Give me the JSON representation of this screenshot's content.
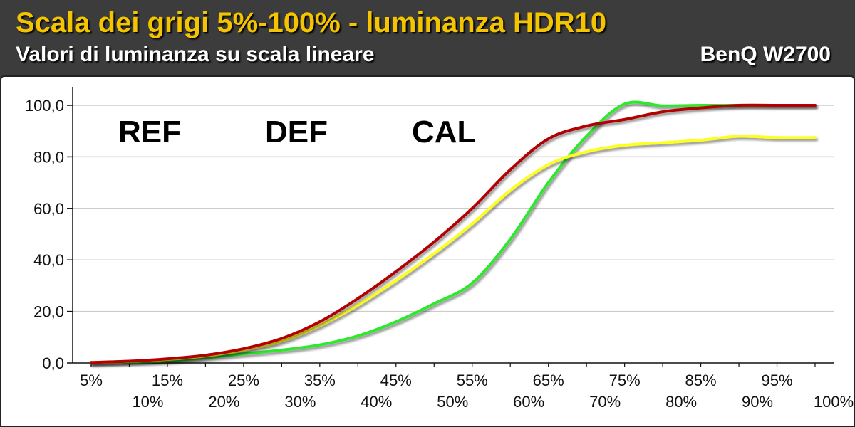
{
  "header": {
    "title": "Scala dei grigi 5%-100% - luminanza HDR10",
    "subtitle": "Valori di luminanza su scala lineare",
    "brand": "BenQ W2700"
  },
  "colors": {
    "REF": "#2ee82e",
    "DEF": "#ffff1a",
    "CAL": "#b30000",
    "grid": "#cccccc"
  },
  "chart_data": {
    "type": "line",
    "title": "Scala dei grigi 5%-100% - luminanza HDR10",
    "subtitle": "Valori di luminanza su scala lineare",
    "x": [
      "5%",
      "10%",
      "15%",
      "20%",
      "25%",
      "30%",
      "35%",
      "40%",
      "45%",
      "50%",
      "55%",
      "60%",
      "65%",
      "70%",
      "75%",
      "80%",
      "85%",
      "90%",
      "95%",
      "100%"
    ],
    "y_ticks": [
      "0,0",
      "20,0",
      "40,0",
      "60,0",
      "80,0",
      "100,0"
    ],
    "ylim": [
      0,
      100
    ],
    "grid": true,
    "legend_placement": "top-left",
    "series": [
      {
        "name": "REF",
        "values": [
          0,
          0.3,
          0.8,
          2.0,
          3.5,
          5.0,
          7.0,
          10.5,
          16.0,
          23.0,
          31.0,
          48.0,
          70.0,
          88.0,
          100.5,
          99.8,
          100,
          100,
          100,
          100
        ]
      },
      {
        "name": "DEF",
        "values": [
          0.2,
          0.6,
          1.4,
          2.7,
          5.0,
          8.5,
          14.5,
          22.5,
          32.0,
          42.5,
          54.0,
          67.0,
          77.0,
          82.0,
          84.5,
          85.5,
          86.5,
          88.0,
          87.5,
          87.5
        ]
      },
      {
        "name": "CAL",
        "values": [
          0.2,
          0.7,
          1.6,
          3.0,
          5.5,
          9.5,
          16.0,
          25.0,
          35.5,
          47.0,
          60.0,
          75.0,
          87.0,
          92.0,
          94.5,
          97.5,
          99.0,
          100,
          100,
          100
        ]
      }
    ]
  }
}
